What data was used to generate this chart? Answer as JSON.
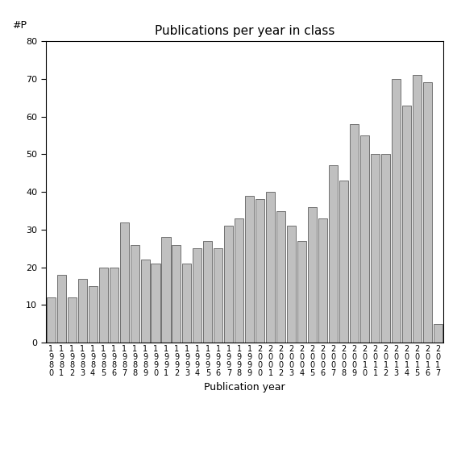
{
  "title": "Publications per year in class",
  "xlabel": "Publication year",
  "ylabel": "#P",
  "ylim": [
    0,
    80
  ],
  "yticks": [
    0,
    10,
    20,
    30,
    40,
    50,
    60,
    70,
    80
  ],
  "bar_color": "#c0c0c0",
  "bar_edgecolor": "#606060",
  "categories": [
    "1980",
    "1981",
    "1982",
    "1983",
    "1984",
    "1985",
    "1986",
    "1987",
    "1988",
    "1989",
    "1990",
    "1991",
    "1992",
    "1993",
    "1994",
    "1995",
    "1996",
    "1997",
    "1998",
    "1999",
    "2000",
    "2001",
    "2002",
    "2003",
    "2004",
    "2005",
    "2006",
    "2007",
    "2008",
    "2009",
    "2010",
    "2011",
    "2012",
    "2013",
    "2014",
    "2015",
    "2016",
    "2017"
  ],
  "values": [
    12,
    18,
    12,
    17,
    15,
    20,
    20,
    32,
    26,
    22,
    21,
    28,
    26,
    21,
    25,
    27,
    25,
    31,
    33,
    39,
    38,
    40,
    35,
    31,
    27,
    36,
    33,
    47,
    43,
    58,
    55,
    50,
    50,
    70,
    63,
    71,
    69,
    5
  ],
  "title_fontsize": 11,
  "axis_label_fontsize": 9,
  "tick_fontsize": 8,
  "xtick_fontsize": 7
}
